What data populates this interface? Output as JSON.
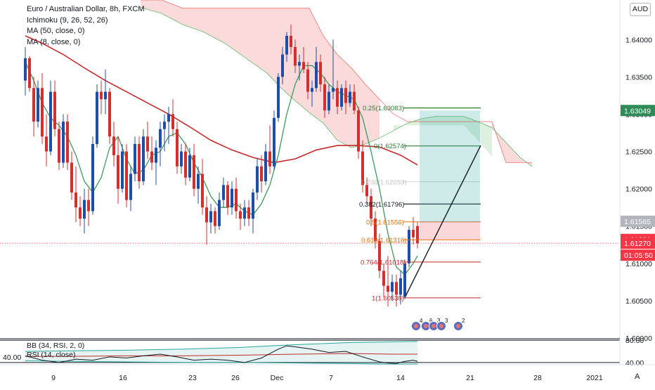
{
  "chart_data": {
    "type": "candlestick",
    "symbol": "Euro / Australian Dollar, 8h, FXCM",
    "currency": "AUD",
    "indicators": [
      "Ichimoku (9, 26, 52, 26)",
      "MA (50, close, 0)",
      "MA (8, close, 0)"
    ],
    "y_ticks": [
      "1.64000",
      "1.63500",
      "1.63000",
      "1.62500",
      "1.62000",
      "1.61500",
      "1.61000",
      "1.60500",
      "1.60000"
    ],
    "x_ticks": [
      "9",
      "16",
      "23",
      "26",
      "Dec",
      "7",
      "14",
      "21",
      "28",
      "2021"
    ],
    "ylim": [
      1.6,
      1.6453
    ],
    "fib_levels": [
      {
        "label": "0.25(1.63083)",
        "value": 1.63083
      },
      {
        "label": "0(1.62574)",
        "value": 1.62574
      },
      {
        "label": "0.236(1.62093)",
        "value": 1.62093
      },
      {
        "label": "0.382(1.61796)",
        "value": 1.61796
      },
      {
        "label": "0.5(1.61556)",
        "value": 1.61556
      },
      {
        "label": "0.618(1.61316)",
        "value": 1.61316
      },
      {
        "label": "0.764(1.61018)",
        "value": 1.61018
      },
      {
        "label": "1(1.60538)",
        "value": 1.60538
      }
    ],
    "price_labels": [
      {
        "text": "1.63049",
        "value": 1.63049,
        "color": "#2e8b57"
      },
      {
        "text": "1.61565",
        "value": 1.61565,
        "color": "#b2b5be"
      },
      {
        "text": "1.61321",
        "value": 1.61321,
        "color": "#f23645"
      },
      {
        "text": "1.61270",
        "value": 1.6127,
        "color": "#f23645"
      },
      {
        "text": "01:05:50",
        "value": 1.6111,
        "color": "#f23645"
      }
    ],
    "current_price": 1.6127,
    "events": [
      "4",
      "6",
      "3",
      "3",
      "2"
    ],
    "oscillator": {
      "legend": [
        "BB (34, RSI, 2, 0)",
        "RSI (14, close)"
      ],
      "left_value": "40.00",
      "y_ticks": [
        "80.00",
        "40.00"
      ]
    }
  }
}
